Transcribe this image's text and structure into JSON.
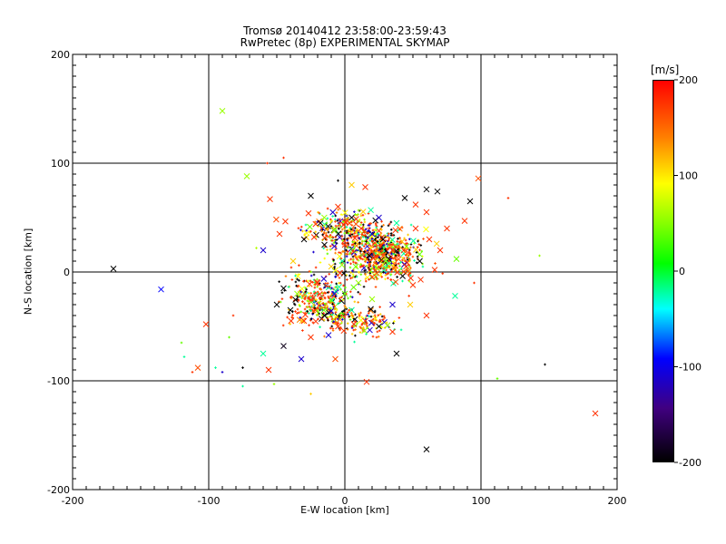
{
  "chart_data": {
    "type": "scatter",
    "title": "Tromsø 20140412 23:58:00-23:59:43",
    "subtitle": "RwPretec (8p) EXPERIMENTAL SKYMAP",
    "xlabel": "E-W location [km]",
    "ylabel": "N-S location [km]",
    "xlim": [
      -200,
      200
    ],
    "ylim": [
      -200,
      200
    ],
    "xticks": [
      "-200",
      "-100",
      "0",
      "100",
      "200"
    ],
    "yticks": [
      "-200",
      "-100",
      "0",
      "100",
      "200"
    ],
    "xtick_values": [
      -200,
      -100,
      0,
      100,
      200
    ],
    "ytick_values": [
      -200,
      -100,
      0,
      100,
      200
    ],
    "grid": true,
    "colorbar": {
      "unit": "[m/s]",
      "range": [
        -200,
        200
      ],
      "ticks": [
        "200",
        "100",
        "0",
        "-100",
        "-200"
      ],
      "tick_values": [
        200,
        100,
        0,
        -100,
        -200
      ]
    },
    "markers_note": "x = large cross, + = small point marker",
    "points": [
      {
        "x": -90,
        "y": 148,
        "v": 60,
        "m": "x"
      },
      {
        "x": -72,
        "y": 88,
        "v": 60,
        "m": "x"
      },
      {
        "x": -170,
        "y": 3,
        "v": -200,
        "m": "x"
      },
      {
        "x": -135,
        "y": -16,
        "v": -100,
        "m": "x"
      },
      {
        "x": -102,
        "y": -48,
        "v": 180,
        "m": "x"
      },
      {
        "x": -108,
        "y": -88,
        "v": 170,
        "m": "x"
      },
      {
        "x": -56,
        "y": -90,
        "v": 180,
        "m": "x"
      },
      {
        "x": -60,
        "y": -75,
        "v": -30,
        "m": "x"
      },
      {
        "x": -45,
        "y": -68,
        "v": -190,
        "m": "x"
      },
      {
        "x": -32,
        "y": -80,
        "v": -120,
        "m": "x"
      },
      {
        "x": -7,
        "y": -80,
        "v": 170,
        "m": "x"
      },
      {
        "x": 16,
        "y": -101,
        "v": 180,
        "m": "x"
      },
      {
        "x": 38,
        "y": -75,
        "v": -200,
        "m": "x"
      },
      {
        "x": 60,
        "y": -163,
        "v": -200,
        "m": "x"
      },
      {
        "x": 184,
        "y": -130,
        "v": 180,
        "m": "x"
      },
      {
        "x": 147,
        "y": -85,
        "v": -200,
        "m": "+"
      },
      {
        "x": 112,
        "y": -98,
        "v": 40,
        "m": "+"
      },
      {
        "x": 143,
        "y": 15,
        "v": 60,
        "m": "+"
      },
      {
        "x": 120,
        "y": 68,
        "v": 180,
        "m": "+"
      },
      {
        "x": 98,
        "y": 86,
        "v": 170,
        "m": "x"
      },
      {
        "x": 92,
        "y": 65,
        "v": -200,
        "m": "x"
      },
      {
        "x": 88,
        "y": 47,
        "v": 180,
        "m": "x"
      },
      {
        "x": 82,
        "y": 12,
        "v": 40,
        "m": "x"
      },
      {
        "x": 81,
        "y": -22,
        "v": -30,
        "m": "x"
      },
      {
        "x": 95,
        "y": -10,
        "v": 180,
        "m": "+"
      },
      {
        "x": 60,
        "y": 76,
        "v": -200,
        "m": "x"
      },
      {
        "x": 68,
        "y": 74,
        "v": -200,
        "m": "x"
      },
      {
        "x": 44,
        "y": 68,
        "v": -200,
        "m": "x"
      },
      {
        "x": 15,
        "y": 78,
        "v": 180,
        "m": "x"
      },
      {
        "x": 5,
        "y": 80,
        "v": 120,
        "m": "x"
      },
      {
        "x": -5,
        "y": 84,
        "v": -200,
        "m": "+"
      },
      {
        "x": -45,
        "y": 105,
        "v": 180,
        "m": "+"
      },
      {
        "x": -57,
        "y": 100,
        "v": 180,
        "m": "+"
      },
      {
        "x": -25,
        "y": 70,
        "v": -200,
        "m": "x"
      },
      {
        "x": -55,
        "y": 67,
        "v": 180,
        "m": "x"
      },
      {
        "x": -48,
        "y": 35,
        "v": 180,
        "m": "x"
      },
      {
        "x": -65,
        "y": 22,
        "v": 70,
        "m": "+"
      },
      {
        "x": -60,
        "y": 20,
        "v": -120,
        "m": "x"
      },
      {
        "x": -30,
        "y": 30,
        "v": -200,
        "m": "x"
      },
      {
        "x": -18,
        "y": 45,
        "v": -200,
        "m": "x"
      },
      {
        "x": -5,
        "y": 60,
        "v": 180,
        "m": "x"
      },
      {
        "x": 5,
        "y": 50,
        "v": -200,
        "m": "x"
      },
      {
        "x": 12,
        "y": 40,
        "v": 180,
        "m": "x"
      },
      {
        "x": 20,
        "y": 35,
        "v": -120,
        "m": "x"
      },
      {
        "x": 28,
        "y": 30,
        "v": -200,
        "m": "x"
      },
      {
        "x": 35,
        "y": 20,
        "v": 180,
        "m": "x"
      },
      {
        "x": 42,
        "y": 28,
        "v": 120,
        "m": "x"
      },
      {
        "x": 52,
        "y": 40,
        "v": 180,
        "m": "x"
      },
      {
        "x": 62,
        "y": 30,
        "v": 180,
        "m": "x"
      },
      {
        "x": 70,
        "y": 20,
        "v": 180,
        "m": "x"
      },
      {
        "x": 55,
        "y": 10,
        "v": -200,
        "m": "x"
      },
      {
        "x": 45,
        "y": 5,
        "v": 180,
        "m": "x"
      },
      {
        "x": 30,
        "y": 10,
        "v": 60,
        "m": "x"
      },
      {
        "x": 18,
        "y": 15,
        "v": -200,
        "m": "x"
      },
      {
        "x": 8,
        "y": 5,
        "v": 40,
        "m": "x"
      },
      {
        "x": 0,
        "y": 25,
        "v": 180,
        "m": "x"
      },
      {
        "x": -10,
        "y": 5,
        "v": 120,
        "m": "x"
      },
      {
        "x": -20,
        "y": -10,
        "v": 180,
        "m": "x"
      },
      {
        "x": -35,
        "y": -20,
        "v": 60,
        "m": "x"
      },
      {
        "x": -45,
        "y": -15,
        "v": -200,
        "m": "x"
      },
      {
        "x": -50,
        "y": -30,
        "v": -200,
        "m": "x"
      },
      {
        "x": -40,
        "y": -35,
        "v": -200,
        "m": "x"
      },
      {
        "x": -30,
        "y": -45,
        "v": 180,
        "m": "x"
      },
      {
        "x": -15,
        "y": -40,
        "v": -200,
        "m": "x"
      },
      {
        "x": -5,
        "y": -50,
        "v": 180,
        "m": "x"
      },
      {
        "x": 5,
        "y": -35,
        "v": -30,
        "m": "x"
      },
      {
        "x": 15,
        "y": -45,
        "v": 180,
        "m": "x"
      },
      {
        "x": 25,
        "y": -50,
        "v": -200,
        "m": "x"
      },
      {
        "x": 35,
        "y": -55,
        "v": 180,
        "m": "x"
      },
      {
        "x": 48,
        "y": -30,
        "v": 120,
        "m": "x"
      },
      {
        "x": 60,
        "y": -40,
        "v": 180,
        "m": "x"
      },
      {
        "x": 20,
        "y": -25,
        "v": 60,
        "m": "x"
      },
      {
        "x": 35,
        "y": -30,
        "v": -120,
        "m": "x"
      },
      {
        "x": -25,
        "y": -60,
        "v": 180,
        "m": "x"
      },
      {
        "x": -12,
        "y": -58,
        "v": -120,
        "m": "x"
      },
      {
        "x": 0,
        "y": -20,
        "v": 40,
        "m": "x"
      },
      {
        "x": 10,
        "y": -10,
        "v": 60,
        "m": "x"
      },
      {
        "x": -2,
        "y": 10,
        "v": -30,
        "m": "x"
      },
      {
        "x": 25,
        "y": 50,
        "v": -120,
        "m": "x"
      },
      {
        "x": 38,
        "y": 45,
        "v": -30,
        "m": "x"
      },
      {
        "x": 60,
        "y": 55,
        "v": 180,
        "m": "x"
      },
      {
        "x": 75,
        "y": 40,
        "v": 180,
        "m": "x"
      },
      {
        "x": 66,
        "y": 2,
        "v": 180,
        "m": "x"
      },
      {
        "x": 50,
        "y": -12,
        "v": 180,
        "m": "x"
      },
      {
        "x": -8,
        "y": 38,
        "v": 60,
        "m": "x"
      },
      {
        "x": -38,
        "y": 10,
        "v": 120,
        "m": "x"
      },
      {
        "x": 52,
        "y": 62,
        "v": 180,
        "m": "x"
      },
      {
        "x": -15,
        "y": 25,
        "v": -200,
        "m": "x"
      },
      {
        "x": -120,
        "y": -65,
        "v": 40,
        "m": "+"
      },
      {
        "x": -118,
        "y": -78,
        "v": -30,
        "m": "+"
      },
      {
        "x": -112,
        "y": -92,
        "v": 180,
        "m": "+"
      },
      {
        "x": -95,
        "y": -88,
        "v": -30,
        "m": "+"
      },
      {
        "x": -90,
        "y": -92,
        "v": -120,
        "m": "+"
      },
      {
        "x": -75,
        "y": -88,
        "v": -200,
        "m": "+"
      },
      {
        "x": -75,
        "y": -105,
        "v": -30,
        "m": "+"
      },
      {
        "x": -52,
        "y": -103,
        "v": 60,
        "m": "+"
      },
      {
        "x": -25,
        "y": -112,
        "v": 120,
        "m": "+"
      },
      {
        "x": -85,
        "y": -60,
        "v": 40,
        "m": "+"
      },
      {
        "x": -82,
        "y": -40,
        "v": 180,
        "m": "+"
      }
    ]
  }
}
